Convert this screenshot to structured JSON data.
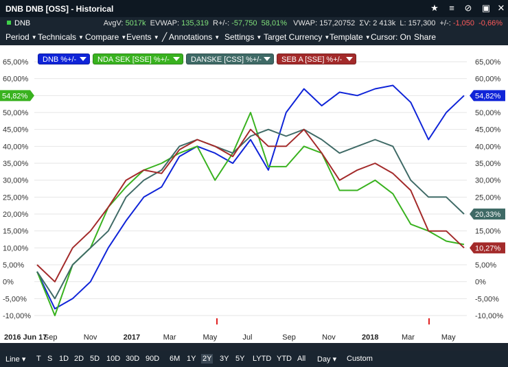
{
  "window": {
    "title": "DNB DNB [OSS] - Historical"
  },
  "info": {
    "symbol": "DNB",
    "avgv_label": "AvgV:",
    "avgv": "5017k",
    "evwap_label": "EVWAP:",
    "evwap": "135,319",
    "rpm_label": "R+/-:",
    "rpm": "-57,750",
    "rpm_pct": "58,01%",
    "vwap_label": "VWAP:",
    "vwap": "157,20752",
    "sumv_label": "ΣV:",
    "sumv": "2 413k",
    "last_label": "L:",
    "last": "157,300",
    "chg_label": "+/-:",
    "chg": "-1,050",
    "chg_pct": "-0,66%"
  },
  "menu": [
    "Period",
    "Technicals",
    "Compare",
    "Events",
    "Annotations",
    "Settings",
    "Target Currency",
    "Template",
    "Cursor: On",
    "Share"
  ],
  "legend": [
    {
      "label": "DNB %+/-",
      "color": "#0f24d8"
    },
    {
      "label": "NDA SEK [SSE] %+/-",
      "color": "#39b21f"
    },
    {
      "label": "DANSKE [CSS] %+/-",
      "color": "#3f6a66"
    },
    {
      "label": "SEB A [SSE] %+/-",
      "color": "#a32a2a"
    }
  ],
  "bottom": [
    "Line",
    "T",
    "S",
    "1D",
    "2D",
    "5D",
    "10D",
    "30D",
    "90D",
    "6M",
    "1Y",
    "2Y",
    "3Y",
    "5Y",
    "LYTD",
    "YTD",
    "All",
    "Day",
    "Custom"
  ],
  "bottom_active": "2Y",
  "chart_data": {
    "type": "line",
    "ylim": [
      -10,
      65
    ],
    "y_ticks": [
      "65,00%",
      "60,00%",
      "55,00%",
      "50,00%",
      "45,00%",
      "40,00%",
      "35,00%",
      "30,00%",
      "25,00%",
      "20,00%",
      "15,00%",
      "10,00%",
      "5,00%",
      "0%",
      "-5,00%",
      "-10,00%"
    ],
    "x_labels": [
      "2016 Jun 17",
      "Sep",
      "Nov",
      "2017",
      "Mar",
      "May",
      "Jul",
      "Sep",
      "Nov",
      "2018",
      "Mar",
      "May"
    ],
    "x_label_bold": [
      "2016 Jun 17",
      "2017",
      "2018"
    ],
    "x": [
      "2016-06",
      "2016-07",
      "2016-08",
      "2016-09",
      "2016-10",
      "2016-11",
      "2016-12",
      "2017-01",
      "2017-02",
      "2017-03",
      "2017-04",
      "2017-05",
      "2017-06",
      "2017-07",
      "2017-08",
      "2017-09",
      "2017-10",
      "2017-11",
      "2017-12",
      "2018-01",
      "2018-02",
      "2018-03",
      "2018-04",
      "2018-05",
      "2018-06"
    ],
    "series": [
      {
        "name": "DNB %+/-",
        "color": "#0f24d8",
        "last_label": "54,82%",
        "values": [
          3,
          -8,
          -5,
          0,
          10,
          18,
          25,
          28,
          37,
          40,
          38,
          35,
          42,
          33,
          50,
          57,
          52,
          56,
          55,
          57,
          58,
          53,
          42,
          50,
          55
        ]
      },
      {
        "name": "NDA SEK [SSE] %+/-",
        "color": "#39b21f",
        "last_label": "",
        "values": [
          3,
          -10,
          5,
          10,
          22,
          28,
          33,
          35,
          38,
          40,
          30,
          38,
          50,
          34,
          34,
          40,
          38,
          27,
          27,
          30,
          26,
          17,
          15,
          12,
          11
        ]
      },
      {
        "name": "DANSKE [CSS] %+/-",
        "color": "#3f6a66",
        "last_label": "20,33%",
        "values": [
          3,
          -5,
          5,
          10,
          15,
          25,
          30,
          33,
          40,
          42,
          40,
          38,
          43,
          45,
          43,
          45,
          42,
          38,
          40,
          42,
          40,
          30,
          25,
          25,
          20
        ]
      },
      {
        "name": "SEB A [SSE] %+/-",
        "color": "#a32a2a",
        "last_label": "10,27%",
        "values": [
          5,
          0,
          10,
          15,
          22,
          30,
          33,
          32,
          39,
          42,
          40,
          37,
          45,
          40,
          40,
          45,
          38,
          30,
          33,
          35,
          32,
          27,
          15,
          15,
          10
        ]
      }
    ]
  }
}
